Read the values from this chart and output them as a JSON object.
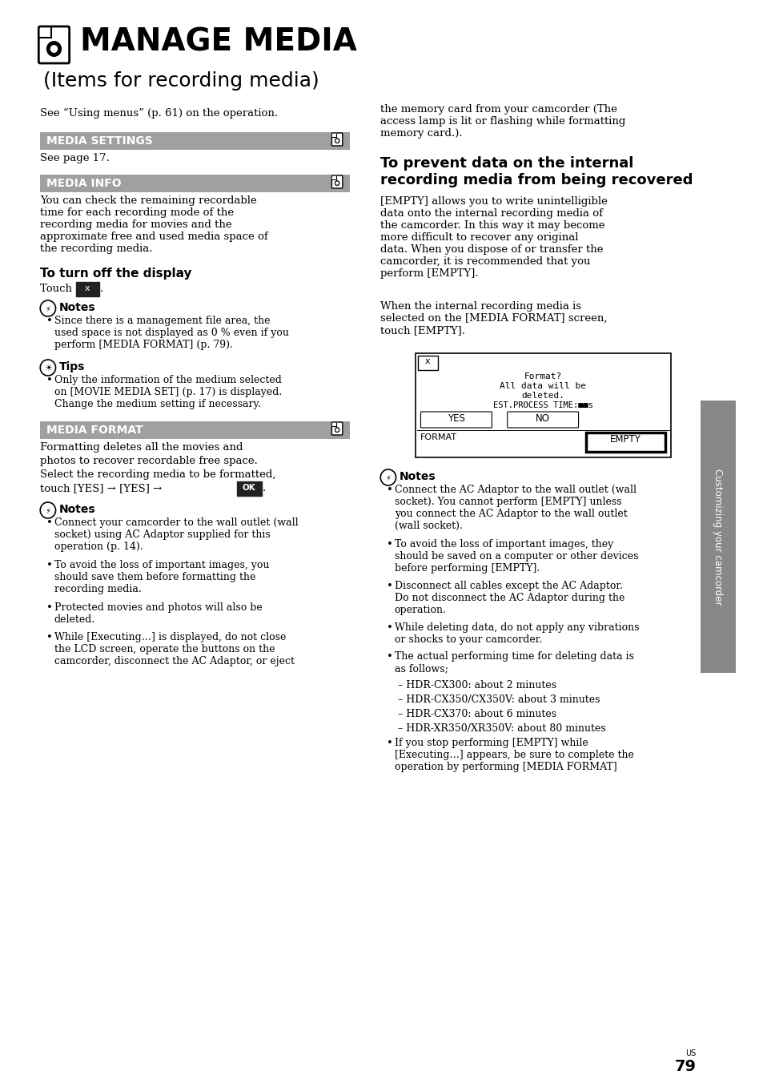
{
  "bg_color": "#ffffff",
  "title_main": "MANAGE MEDIA",
  "title_sub": "(Items for recording media)",
  "intro_text": "See “Using menus” (p. 61) on the operation.",
  "section1_title": "MEDIA SETTINGS",
  "section1_body": "See page 17.",
  "section2_title": "MEDIA INFO",
  "section2_body": "You can check the remaining recordable\ntime for each recording mode of the\nrecording media for movies and the\napproximate free and used media space of\nthe recording media.",
  "subsection1_title": "To turn off the display",
  "notes1_bullets": [
    "Since there is a management file area, the\nused space is not displayed as 0 % even if you\nperform [MEDIA FORMAT] (p. 79)."
  ],
  "tips1_bullets": [
    "Only the information of the medium selected\non [MOVIE MEDIA SET] (p. 17) is displayed.\nChange the medium setting if necessary."
  ],
  "section3_title": "MEDIA FORMAT",
  "section3_body_lines": [
    "Formatting deletes all the movies and",
    "photos to recover recordable free space.",
    "Select the recording media to be formatted,",
    "touch [YES] → [YES] → OK."
  ],
  "notes2_bullets": [
    "Connect your camcorder to the wall outlet (wall\nsocket) using AC Adaptor supplied for this\noperation (p. 14).",
    "To avoid the loss of important images, you\nshould save them before formatting the\nrecording media.",
    "Protected movies and photos will also be\ndeleted.",
    "While [Executing…] is displayed, do not close\nthe LCD screen, operate the buttons on the\ncamcorder, disconnect the AC Adaptor, or eject"
  ],
  "right_col_top": "the memory card from your camcorder (The\naccess lamp is lit or flashing while formatting\nmemory card.).",
  "right_section_title": "To prevent data on the internal\nrecording media from being recovered",
  "right_section_body1": "[EMPTY] allows you to write unintelligible\ndata onto the internal recording media of\nthe camcorder. In this way it may become\nmore difficult to recover any original\ndata. When you dispose of or transfer the\ncamcorder, it is recommended that you\nperform [EMPTY].",
  "right_section_body2": "When the internal recording media is\nselected on the [MEDIA FORMAT] screen,\ntouch [EMPTY].",
  "right_notes_bullets": [
    "Connect the AC Adaptor to the wall outlet (wall\nsocket). You cannot perform [EMPTY] unless\nyou connect the AC Adaptor to the wall outlet\n(wall socket).",
    "To avoid the loss of important images, they\nshould be saved on a computer or other devices\nbefore performing [EMPTY].",
    "Disconnect all cables except the AC Adaptor.\nDo not disconnect the AC Adaptor during the\noperation.",
    "While deleting data, do not apply any vibrations\nor shocks to your camcorder.",
    "The actual performing time for deleting data is\nas follows;",
    "– HDR-CX300: about 2 minutes",
    "– HDR-CX350/CX350V: about 3 minutes",
    "– HDR-CX370: about 6 minutes",
    "– HDR-XR350/XR350V: about 80 minutes",
    "If you stop performing [EMPTY] while\n[Executing…] appears, be sure to complete the\noperation by performing [MEDIA FORMAT]"
  ],
  "page_number": "79",
  "sidebar_text": "Customizing your camcorder",
  "section_header_bg": "#a0a0a0"
}
